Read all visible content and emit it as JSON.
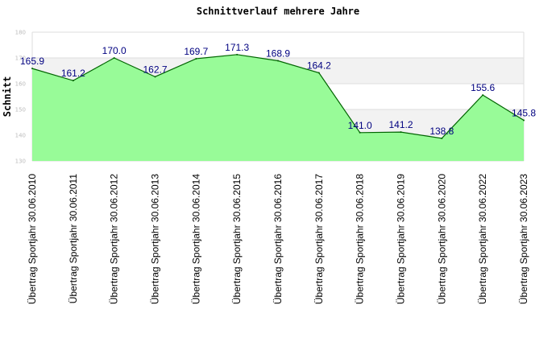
{
  "chart_data": {
    "type": "area",
    "title": "Schnittverlauf mehrere Jahre",
    "ylabel": "Schnitt",
    "ylim": [
      130,
      180
    ],
    "yticks": [
      130,
      140,
      150,
      160,
      170,
      180
    ],
    "grid": true,
    "categories": [
      "Übertrag Sportjahr 30.06.2010",
      "Übertrag Sportjahr 30.06.2011",
      "Übertrag Sportjahr 30.06.2012",
      "Übertrag Sportjahr 30.06.2013",
      "Übertrag Sportjahr 30.06.2014",
      "Übertrag Sportjahr 30.06.2015",
      "Übertrag Sportjahr 30.06.2016",
      "Übertrag Sportjahr 30.06.2017",
      "Übertrag Sportjahr 30.06.2018",
      "Übertrag Sportjahr 30.06.2019",
      "Übertrag Sportjahr 30.06.2020",
      "Übertrag Sportjahr 30.06.2022",
      "Übertrag Sportjahr 30.06.2023"
    ],
    "values": [
      165.9,
      161.2,
      170.0,
      162.7,
      169.7,
      171.3,
      168.9,
      164.2,
      141.0,
      141.2,
      138.8,
      155.6,
      145.8
    ],
    "data_labels": [
      "165.9",
      "161.2",
      "170.0",
      "162.7",
      "169.7",
      "171.3",
      "168.9",
      "164.2",
      "141.0",
      "141.2",
      "138.8",
      "155.6",
      "145.8"
    ],
    "colors": {
      "fill": "#98fb98",
      "line": "#006400",
      "band": "#f2f2f2",
      "grid": "#dddddd"
    }
  }
}
